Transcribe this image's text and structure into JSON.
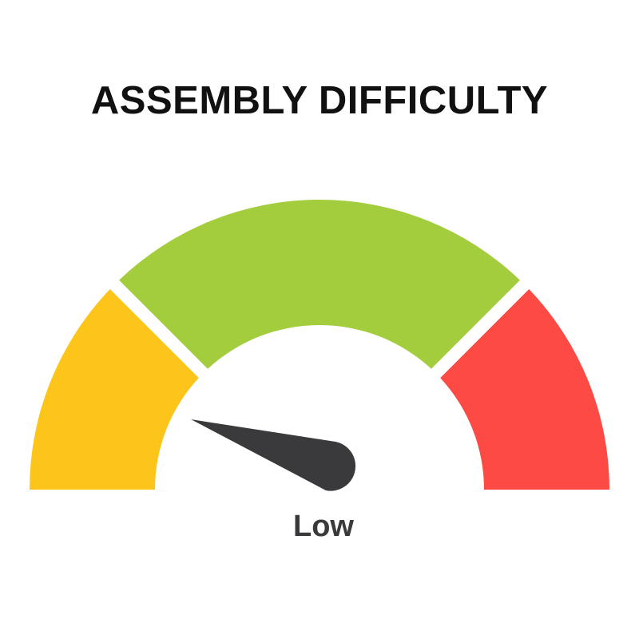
{
  "title": "ASSEMBLY DIFFICULTY",
  "gauge": {
    "level_label": "Low",
    "segments": [
      {
        "color": "#FDC41A"
      },
      {
        "color": "#A3CD3D"
      },
      {
        "color": "#FD4A45"
      }
    ],
    "needle_color": "#3a3a3c"
  }
}
